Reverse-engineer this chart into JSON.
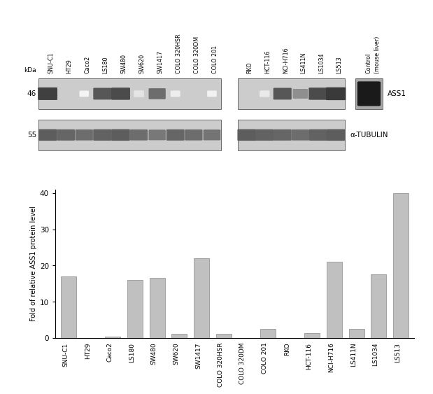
{
  "categories": [
    "SNU-C1",
    "HT29",
    "Caco2",
    "LS180",
    "SW480",
    "SW620",
    "SW1417",
    "COLO 320HSR",
    "COLO 320DM",
    "COLO 201",
    "RKO",
    "HCT-116",
    "NCI-H716",
    "LS411N",
    "LS1034",
    "LS513"
  ],
  "bar_values": [
    17.0,
    0.0,
    0.4,
    16.0,
    16.7,
    1.2,
    22.0,
    1.1,
    0.0,
    2.5,
    0.0,
    1.3,
    21.0,
    2.5,
    17.5,
    40.0
  ],
  "bar_color": "#c0c0c0",
  "bar_edge_color": "#888888",
  "ylim": [
    0,
    41
  ],
  "yticks": [
    0,
    10,
    20,
    30,
    40
  ],
  "ylabel": "Fold of relative ASS1 protein level",
  "blot_panel1_labels": [
    "SNU-C1",
    "HT29",
    "Caco2",
    "LS180",
    "SW480",
    "SW620",
    "SW1417",
    "COLO 320HSR",
    "COLO 320DM",
    "COLO 201"
  ],
  "blot_panel2_labels": [
    "RKO",
    "HCT-116",
    "NCI-H716",
    "LS411N",
    "LS1034",
    "LS513"
  ],
  "kda_46": "46",
  "kda_55": "55",
  "label_ass1": "ASS1",
  "label_tubulin": "α-TUBULIN",
  "label_kda": "kDa",
  "background_color": "#ffffff",
  "ass1_intensities": [
    0.85,
    0.0,
    0.05,
    0.75,
    0.8,
    0.12,
    0.65,
    0.08,
    0.0,
    0.06,
    0.0,
    0.1,
    0.75,
    0.5,
    0.8,
    0.88
  ],
  "tub_intensities": [
    0.72,
    0.68,
    0.65,
    0.7,
    0.72,
    0.65,
    0.6,
    0.68,
    0.65,
    0.62,
    0.72,
    0.7,
    0.68,
    0.65,
    0.7,
    0.72
  ],
  "blot_bg": "#cccccc",
  "blot_edge": "#555555",
  "ctrl_bg": "#a8a8a8"
}
